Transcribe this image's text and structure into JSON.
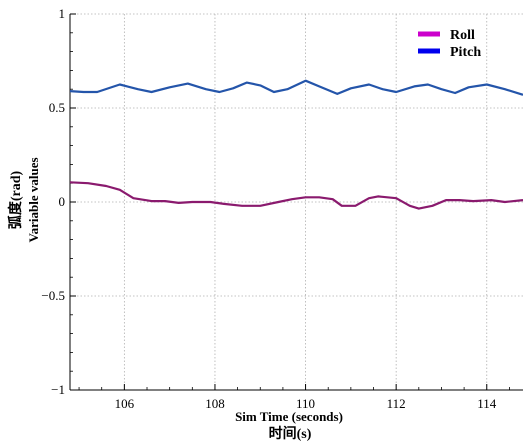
{
  "chart_data": {
    "type": "line",
    "xlabel": "Sim Time (seconds)",
    "xlabel_cn": "时间(s)",
    "ylabel": "Variable values",
    "ylabel_cn": "弧度(rad)",
    "xlim": [
      104.8,
      114.8
    ],
    "ylim": [
      -1,
      1
    ],
    "xticks": [
      106,
      108,
      110,
      112,
      114
    ],
    "xtick_labels": [
      "106",
      "108",
      "110",
      "112",
      "114"
    ],
    "yticks": [
      1,
      0.5,
      0,
      -0.5,
      -1
    ],
    "ytick_labels": [
      "1",
      "0.5",
      "0",
      "−0.5",
      "−1"
    ],
    "grid": true,
    "legend_position": "top-right",
    "series": [
      {
        "name": "Roll",
        "legend_color": "#cc00cc",
        "line_color": "#8a1a6e",
        "x": [
          104.8,
          105.2,
          105.6,
          105.9,
          106.2,
          106.6,
          106.9,
          107.2,
          107.5,
          107.9,
          108.2,
          108.6,
          109.0,
          109.4,
          109.7,
          110.0,
          110.3,
          110.6,
          110.8,
          111.1,
          111.4,
          111.6,
          112.0,
          112.3,
          112.5,
          112.8,
          113.1,
          113.4,
          113.7,
          114.1,
          114.4,
          114.8
        ],
        "values": [
          0.105,
          0.1,
          0.085,
          0.065,
          0.02,
          0.005,
          0.005,
          -0.005,
          0.0,
          0.0,
          -0.01,
          -0.02,
          -0.02,
          0.0,
          0.015,
          0.025,
          0.025,
          0.015,
          -0.02,
          -0.02,
          0.02,
          0.03,
          0.02,
          -0.02,
          -0.035,
          -0.02,
          0.01,
          0.01,
          0.005,
          0.01,
          0.0,
          0.01
        ]
      },
      {
        "name": "Pitch",
        "legend_color": "#0000ee",
        "line_color": "#2455aa",
        "x": [
          104.8,
          105.1,
          105.4,
          105.9,
          106.3,
          106.6,
          107.0,
          107.4,
          107.8,
          108.1,
          108.4,
          108.7,
          109.0,
          109.3,
          109.6,
          110.0,
          110.3,
          110.7,
          111.0,
          111.4,
          111.7,
          112.0,
          112.4,
          112.7,
          113.0,
          113.3,
          113.6,
          114.0,
          114.4,
          114.8
        ],
        "values": [
          0.59,
          0.585,
          0.585,
          0.625,
          0.6,
          0.585,
          0.61,
          0.63,
          0.6,
          0.585,
          0.605,
          0.635,
          0.62,
          0.585,
          0.6,
          0.645,
          0.615,
          0.575,
          0.605,
          0.625,
          0.6,
          0.585,
          0.615,
          0.625,
          0.6,
          0.58,
          0.61,
          0.625,
          0.6,
          0.57
        ]
      }
    ]
  }
}
